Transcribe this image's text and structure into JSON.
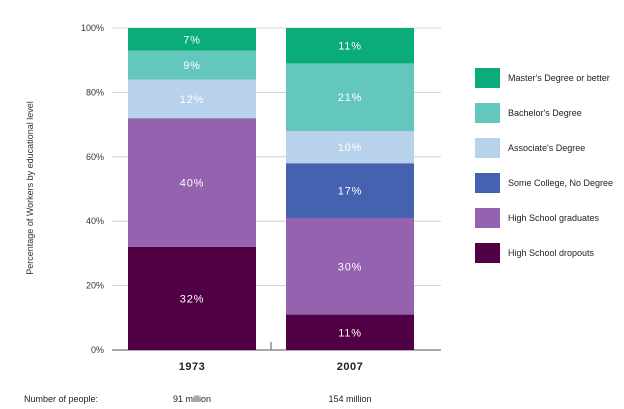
{
  "chart_data": {
    "type": "bar",
    "stacked": true,
    "ylabel": "Percentage of Workers by educational level",
    "ylim": [
      0,
      100
    ],
    "yticks": [
      "0%",
      "20%",
      "40%",
      "60%",
      "80%",
      "100%"
    ],
    "categories": [
      "1973",
      "2007"
    ],
    "series": [
      {
        "name": "High School dropouts",
        "color": "#520046",
        "values": [
          32,
          11
        ]
      },
      {
        "name": "High School graduates",
        "color": "#9462ae",
        "values": [
          40,
          30
        ]
      },
      {
        "name": "Some College, No Degree",
        "color": "#4462b0",
        "values": [
          0,
          17
        ]
      },
      {
        "name": "Associate's Degree",
        "color": "#b9d2ec",
        "values": [
          12,
          10
        ]
      },
      {
        "name": "Bachelor's Degree",
        "color": "#63c7bd",
        "values": [
          9,
          21
        ]
      },
      {
        "name": "Master's Degree or better",
        "color": "#0bac7c",
        "values": [
          7,
          11
        ]
      }
    ],
    "legend_order": [
      "Master's Degree or better",
      "Bachelor's Degree",
      "Associate's Degree",
      "Some College, No Degree",
      "High School graduates",
      "High School dropouts"
    ],
    "legend_position": "right",
    "grid": true
  },
  "footer": {
    "label": "Number of people:",
    "values": [
      "91 million",
      "154 million"
    ]
  }
}
